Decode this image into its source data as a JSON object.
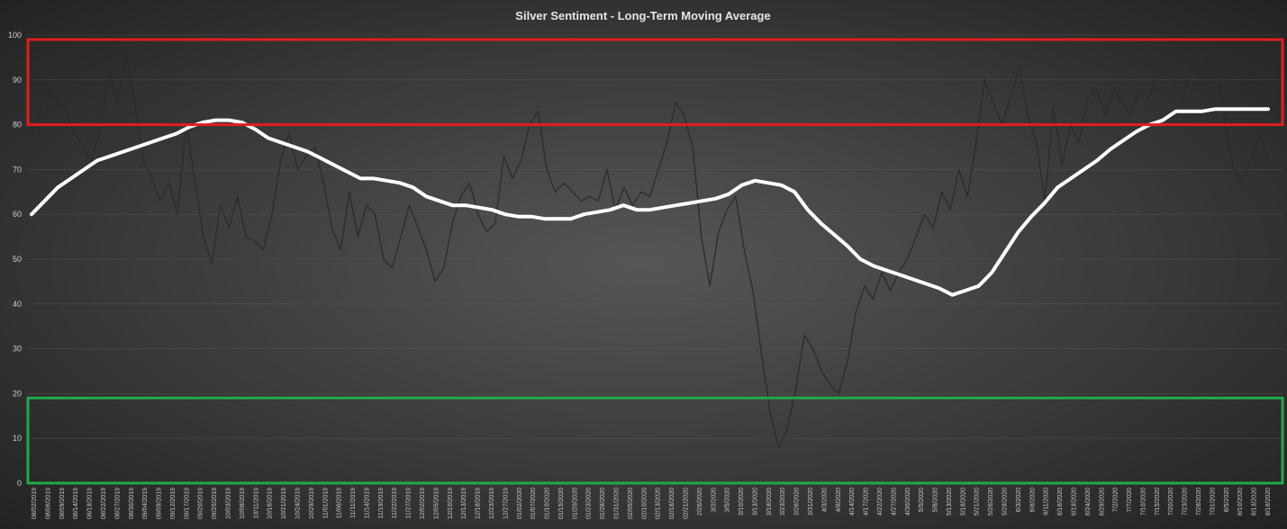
{
  "chart_data": {
    "type": "line",
    "title": "Silver Sentiment - Long-Term Moving Average",
    "xlabel": "",
    "ylabel": "",
    "ylim": [
      0,
      100
    ],
    "yticks": [
      0,
      10,
      20,
      30,
      40,
      50,
      60,
      70,
      80,
      90,
      100
    ],
    "grid": true,
    "legend": "none",
    "colors": {
      "moving_average": "#ffffff",
      "daily": "#2b2b2b",
      "overbought_zone": "#e01e1e",
      "oversold_zone": "#1faa4a",
      "grid": "#5a5a5a"
    },
    "zones": [
      {
        "name": "overbought",
        "from": 80,
        "to": 99
      },
      {
        "name": "oversold",
        "from": 0,
        "to": 19
      }
    ],
    "x_labels": [
      "08/02/2019",
      "08/06/2019",
      "08/09/2019",
      "08/14/2019",
      "08/19/2019",
      "08/22/2019",
      "08/27/2019",
      "08/30/2019",
      "09/04/2019",
      "09/09/2019",
      "09/12/2019",
      "09/17/2019",
      "09/20/2019",
      "09/25/2019",
      "10/03/2019",
      "10/08/2019",
      "10/11/2019",
      "10/16/2019",
      "10/21/2019",
      "10/24/2019",
      "10/29/2019",
      "11/01/2019",
      "11/06/2019",
      "11/11/2019",
      "11/14/2019",
      "11/19/2019",
      "11/22/2019",
      "11/27/2019",
      "12/02/2019",
      "12/05/2019",
      "12/10/2019",
      "12/13/2019",
      "12/18/2019",
      "12/23/2019",
      "12/27/2019",
      "01/02/2020",
      "01/07/2020",
      "01/10/2020",
      "01/15/2020",
      "01/20/2020",
      "01/23/2020",
      "01/28/2020",
      "01/31/2020",
      "02/05/2020",
      "02/10/2020",
      "02/13/2020",
      "02/18/2020",
      "02/21/2020",
      "2/26/2020",
      "3/2/2020",
      "3/5/2020",
      "3/10/2020",
      "3/13/2020",
      "3/18/2020",
      "3/23/2020",
      "3/26/2020",
      "3/31/2020",
      "4/3/2020",
      "4/8/2020",
      "4/14/2020",
      "4/17/2020",
      "4/22/2020",
      "4/27/2020",
      "4/30/2020",
      "5/5/2020",
      "5/8/2020",
      "5/13/2020",
      "5/18/2020",
      "5/21/2020",
      "5/26/2020",
      "5/29/2020",
      "6/3/2020",
      "6/8/2020",
      "6/11/2020",
      "6/16/2020",
      "6/19/2020",
      "6/24/2020",
      "6/29/2020",
      "7/2/2020",
      "7/7/2020",
      "7/10/2020",
      "7/15/2020",
      "7/20/2020",
      "7/23/2020",
      "7/28/2020",
      "7/31/2020",
      "8/5/2020",
      "8/10/2020",
      "8/13/2020",
      "8/18/2020"
    ],
    "series": [
      {
        "key": "moving_average",
        "values": [
          60,
          63,
          66,
          68,
          70,
          72,
          73,
          74,
          75,
          76,
          77,
          78,
          79.5,
          80.5,
          81,
          81,
          80.5,
          79,
          77,
          76,
          75,
          74,
          72.5,
          71,
          69.5,
          68,
          68,
          67.5,
          67,
          66,
          64,
          63,
          62,
          62,
          61.5,
          61,
          60,
          59.5,
          59.5,
          59,
          59,
          59,
          60,
          60.5,
          61,
          62,
          61,
          61,
          61.5,
          62,
          62.5,
          63,
          63.5,
          64.5,
          66.5,
          67.5,
          67,
          66.5,
          65,
          61,
          58,
          55.5,
          53,
          50,
          48.5,
          47.5,
          46.5,
          45.5,
          44.5,
          43.5,
          42,
          43,
          44,
          47,
          51.5,
          56,
          59.5,
          62.5,
          66,
          68,
          70,
          72,
          74.5,
          76.5,
          78.5,
          80,
          81,
          83,
          83,
          83,
          83.5,
          83.5,
          83.5,
          83.5,
          83.5
        ]
      },
      {
        "key": "daily",
        "values": [
          77,
          84,
          88,
          85,
          83,
          78,
          75,
          72,
          79,
          92,
          85,
          95,
          85,
          72,
          68,
          63,
          67,
          60,
          80,
          68,
          55,
          49,
          62,
          57,
          64,
          55,
          54,
          52,
          60,
          72,
          78,
          70,
          73,
          75,
          67,
          57,
          52,
          65,
          55,
          62,
          60,
          50,
          48,
          55,
          62,
          57,
          52,
          45,
          48,
          58,
          64,
          67,
          60,
          56,
          58,
          73,
          68,
          72,
          80,
          83,
          70,
          65,
          67,
          65,
          63,
          64,
          63,
          70,
          61,
          66,
          62,
          65,
          64,
          70,
          76,
          85,
          82,
          75,
          55,
          44,
          56,
          61,
          64,
          52,
          43,
          29,
          16,
          8,
          12,
          21,
          33,
          30,
          25,
          22,
          20,
          27,
          38,
          44,
          41,
          47,
          43,
          47,
          50,
          55,
          60,
          57,
          65,
          61,
          70,
          64,
          76,
          90,
          85,
          80,
          86,
          93,
          82,
          76,
          63,
          84,
          71,
          80,
          76,
          86,
          88,
          82,
          88,
          85,
          82,
          88,
          86,
          90,
          92,
          90,
          85,
          93,
          91,
          95,
          96,
          80,
          70,
          68,
          72,
          78,
          72
        ]
      }
    ]
  }
}
